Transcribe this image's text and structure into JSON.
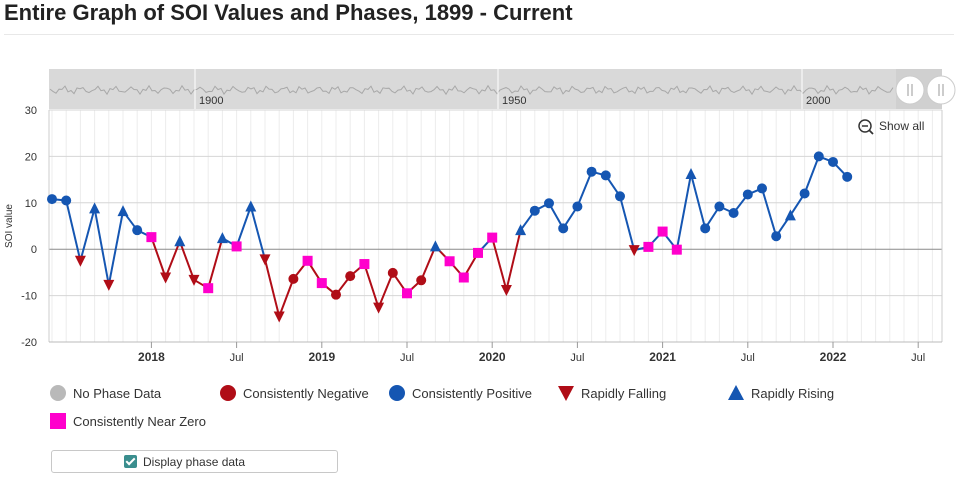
{
  "header": {
    "title": "Entire Graph of SOI Values and Phases, 1899 - Current"
  },
  "navigator": {
    "labels": [
      "1900",
      "1950",
      "2000"
    ]
  },
  "controls": {
    "show_all_label": "Show all",
    "display_phase_label": "Display phase data"
  },
  "colors": {
    "no_data": "#b9b9b9",
    "negative": "#b00d17",
    "positive": "#1556b2",
    "falling": "#b00d17",
    "rising": "#1556b2",
    "near_zero": "#ff00cc",
    "line_negative": "#b00d17",
    "line_positive": "#1556b2"
  },
  "chart_data": {
    "type": "line",
    "title": "",
    "xlabel": "",
    "ylabel": "SOI value",
    "ylim": [
      -20,
      30
    ],
    "yticks": [
      "30",
      "20",
      "10",
      "0",
      "-10",
      "-20"
    ],
    "xtick_labels": [
      {
        "label": "2018",
        "date": "2018-01",
        "major": true
      },
      {
        "label": "Jul",
        "date": "2018-07",
        "major": false
      },
      {
        "label": "2019",
        "date": "2019-01",
        "major": true
      },
      {
        "label": "Jul",
        "date": "2019-07",
        "major": false
      },
      {
        "label": "2020",
        "date": "2020-01",
        "major": true
      },
      {
        "label": "Jul",
        "date": "2020-07",
        "major": false
      },
      {
        "label": "2021",
        "date": "2021-01",
        "major": true
      },
      {
        "label": "Jul",
        "date": "2021-07",
        "major": false
      },
      {
        "label": "2022",
        "date": "2022-01",
        "major": true
      },
      {
        "label": "Jul",
        "date": "2022-07",
        "major": false
      }
    ],
    "grid": true,
    "legend_position": "bottom",
    "legend": [
      {
        "key": "no_data",
        "label": "No Phase Data",
        "shape": "circle"
      },
      {
        "key": "negative",
        "label": "Consistently Negative",
        "shape": "circle"
      },
      {
        "key": "positive",
        "label": "Consistently Positive",
        "shape": "circle"
      },
      {
        "key": "falling",
        "label": "Rapidly Falling",
        "shape": "triangle-down"
      },
      {
        "key": "rising",
        "label": "Rapidly Rising",
        "shape": "triangle-up"
      },
      {
        "key": "near_zero",
        "label": "Consistently Near Zero",
        "shape": "square"
      }
    ],
    "points": [
      {
        "date": "2017-06",
        "value": 10.8,
        "phase": "positive"
      },
      {
        "date": "2017-07",
        "value": 10.5,
        "phase": "positive"
      },
      {
        "date": "2017-08",
        "value": -2.5,
        "phase": "falling"
      },
      {
        "date": "2017-09",
        "value": 8.8,
        "phase": "rising"
      },
      {
        "date": "2017-10",
        "value": -7.7,
        "phase": "falling"
      },
      {
        "date": "2017-11",
        "value": 8.2,
        "phase": "rising"
      },
      {
        "date": "2017-12",
        "value": 4.1,
        "phase": "positive"
      },
      {
        "date": "2018-01",
        "value": 2.6,
        "phase": "near_zero"
      },
      {
        "date": "2018-02",
        "value": -6.1,
        "phase": "falling"
      },
      {
        "date": "2018-03",
        "value": 1.7,
        "phase": "rising"
      },
      {
        "date": "2018-04",
        "value": -6.6,
        "phase": "falling"
      },
      {
        "date": "2018-05",
        "value": -8.4,
        "phase": "near_zero"
      },
      {
        "date": "2018-06",
        "value": 2.4,
        "phase": "rising"
      },
      {
        "date": "2018-07",
        "value": 0.6,
        "phase": "near_zero"
      },
      {
        "date": "2018-08",
        "value": 9.2,
        "phase": "rising"
      },
      {
        "date": "2018-09",
        "value": -2.2,
        "phase": "falling"
      },
      {
        "date": "2018-10",
        "value": -14.5,
        "phase": "falling"
      },
      {
        "date": "2018-11",
        "value": -6.4,
        "phase": "negative"
      },
      {
        "date": "2018-12",
        "value": -2.5,
        "phase": "near_zero"
      },
      {
        "date": "2019-01",
        "value": -7.3,
        "phase": "near_zero"
      },
      {
        "date": "2019-02",
        "value": -9.8,
        "phase": "negative"
      },
      {
        "date": "2019-03",
        "value": -5.8,
        "phase": "negative"
      },
      {
        "date": "2019-04",
        "value": -3.2,
        "phase": "near_zero"
      },
      {
        "date": "2019-05",
        "value": -12.6,
        "phase": "falling"
      },
      {
        "date": "2019-06",
        "value": -5.1,
        "phase": "negative"
      },
      {
        "date": "2019-07",
        "value": -9.5,
        "phase": "near_zero"
      },
      {
        "date": "2019-08",
        "value": -6.7,
        "phase": "negative"
      },
      {
        "date": "2019-09",
        "value": 0.6,
        "phase": "rising"
      },
      {
        "date": "2019-10",
        "value": -2.6,
        "phase": "near_zero"
      },
      {
        "date": "2019-11",
        "value": -6.1,
        "phase": "near_zero"
      },
      {
        "date": "2019-12",
        "value": -0.8,
        "phase": "near_zero"
      },
      {
        "date": "2020-01",
        "value": 2.5,
        "phase": "near_zero"
      },
      {
        "date": "2020-02",
        "value": -8.8,
        "phase": "falling"
      },
      {
        "date": "2020-03",
        "value": 4.1,
        "phase": "rising"
      },
      {
        "date": "2020-04",
        "value": 8.3,
        "phase": "positive"
      },
      {
        "date": "2020-05",
        "value": 9.9,
        "phase": "positive"
      },
      {
        "date": "2020-06",
        "value": 4.5,
        "phase": "positive"
      },
      {
        "date": "2020-07",
        "value": 9.2,
        "phase": "positive"
      },
      {
        "date": "2020-08",
        "value": 16.7,
        "phase": "positive"
      },
      {
        "date": "2020-09",
        "value": 15.9,
        "phase": "positive"
      },
      {
        "date": "2020-10",
        "value": 11.4,
        "phase": "positive"
      },
      {
        "date": "2020-11",
        "value": -0.2,
        "phase": "falling"
      },
      {
        "date": "2020-12",
        "value": 0.5,
        "phase": "near_zero"
      },
      {
        "date": "2021-01",
        "value": 3.8,
        "phase": "near_zero"
      },
      {
        "date": "2021-02",
        "value": -0.1,
        "phase": "near_zero"
      },
      {
        "date": "2021-03",
        "value": 16.2,
        "phase": "rising"
      },
      {
        "date": "2021-04",
        "value": 4.5,
        "phase": "positive"
      },
      {
        "date": "2021-05",
        "value": 9.2,
        "phase": "positive"
      },
      {
        "date": "2021-06",
        "value": 7.8,
        "phase": "positive"
      },
      {
        "date": "2021-07",
        "value": 11.8,
        "phase": "positive"
      },
      {
        "date": "2021-08",
        "value": 13.1,
        "phase": "positive"
      },
      {
        "date": "2021-09",
        "value": 2.8,
        "phase": "positive"
      },
      {
        "date": "2021-10",
        "value": 7.3,
        "phase": "rising"
      },
      {
        "date": "2021-11",
        "value": 12.0,
        "phase": "positive"
      },
      {
        "date": "2021-12",
        "value": 20.0,
        "phase": "positive"
      },
      {
        "date": "2022-01",
        "value": 18.8,
        "phase": "positive"
      },
      {
        "date": "2022-02",
        "value": 15.6,
        "phase": "positive"
      }
    ]
  }
}
